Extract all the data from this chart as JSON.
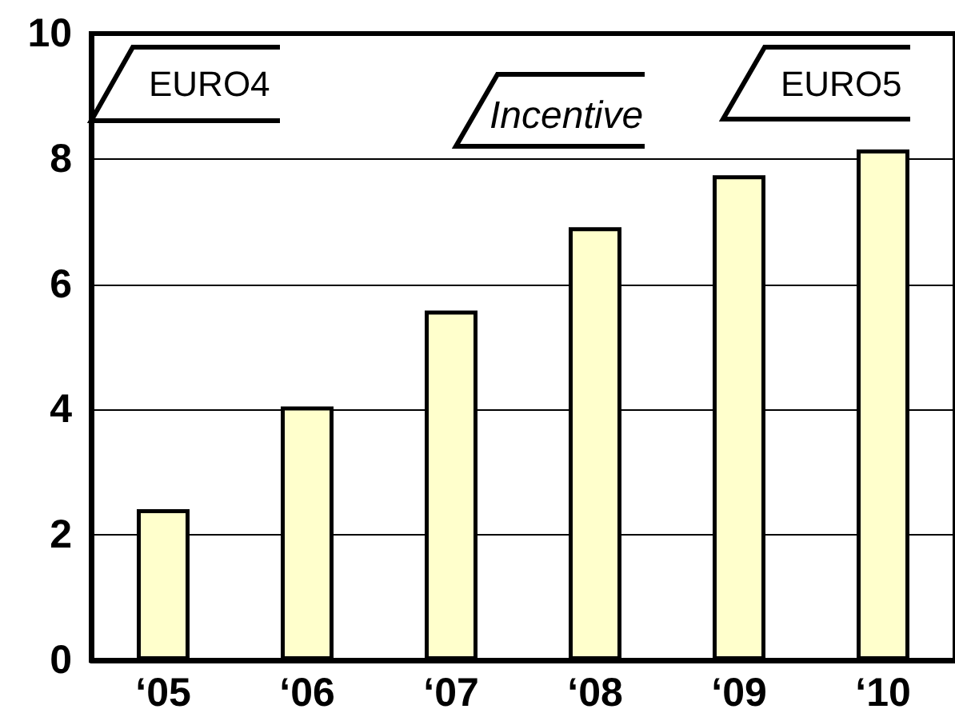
{
  "chart_data": {
    "type": "bar",
    "categories": [
      "‘05",
      "‘06",
      "‘07",
      "‘08",
      "‘09",
      "‘10"
    ],
    "values": [
      2.41,
      4.05,
      5.58,
      6.91,
      7.74,
      8.15
    ],
    "color": "#ffffcc",
    "ylim": [
      0,
      10
    ],
    "yticks": [
      0,
      2,
      4,
      6,
      8,
      10
    ],
    "grid": "y",
    "annotations": [
      "EURO4",
      "Incentive",
      "EURO5"
    ]
  }
}
